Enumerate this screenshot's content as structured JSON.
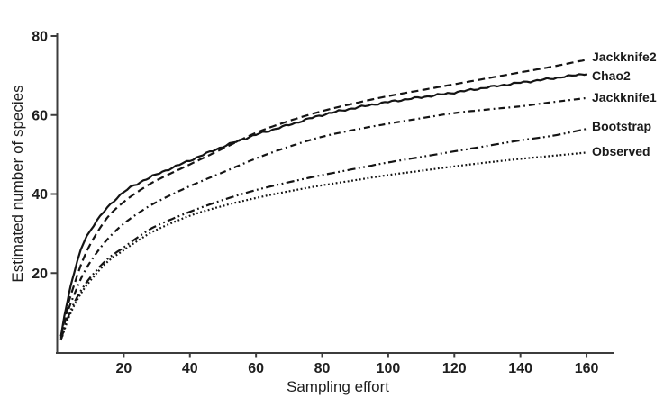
{
  "figure": {
    "background": "#ffffff",
    "axis_color": "#3c3c3c",
    "line_color": "#141414",
    "text_color": "#1e1e1e"
  },
  "chart_data": {
    "type": "line",
    "title": "",
    "xlabel": "Sampling effort",
    "ylabel": "Estimated number of species",
    "xlim": [
      0,
      168
    ],
    "ylim": [
      0,
      80
    ],
    "x_ticks": [
      20,
      40,
      60,
      80,
      100,
      120,
      140,
      160
    ],
    "y_ticks": [
      20,
      40,
      60,
      80
    ],
    "grid": false,
    "legend_position": "right-of-curve-ends",
    "x": [
      1,
      2,
      3,
      4,
      5,
      7,
      10,
      15,
      20,
      25,
      30,
      40,
      50,
      60,
      70,
      80,
      90,
      100,
      110,
      120,
      130,
      140,
      150,
      160
    ],
    "series": [
      {
        "name": "Jackknife2",
        "line_style": "dashed",
        "values": [
          4,
          8,
          11.5,
          14.5,
          17,
          22,
          27.5,
          34,
          38,
          41,
          43.5,
          47.5,
          51.5,
          55.5,
          58.5,
          61,
          63,
          64.8,
          66.3,
          67.8,
          69.3,
          70.8,
          72.3,
          74
        ]
      },
      {
        "name": "Chao2",
        "line_style": "solid",
        "values": [
          4,
          9,
          13,
          17,
          20,
          26,
          31,
          36.5,
          40.5,
          43,
          45,
          48.5,
          52,
          55,
          57.5,
          60,
          61.8,
          63.3,
          64.5,
          65.7,
          67,
          68.2,
          69.3,
          70.5
        ]
      },
      {
        "name": "Jackknife1",
        "line_style": "dash-dot",
        "values": [
          3.5,
          7,
          10,
          12.5,
          14.5,
          18.5,
          23,
          28.5,
          32.5,
          35.5,
          38,
          42,
          45.5,
          49,
          52,
          54.5,
          56.3,
          57.8,
          59.2,
          60.5,
          61.4,
          62.2,
          63.3,
          64.3
        ]
      },
      {
        "name": "Bootstrap",
        "line_style": "dash-dot-dot",
        "values": [
          3,
          6,
          8.5,
          10.5,
          12.5,
          15.5,
          19,
          23.5,
          26.5,
          29.5,
          32,
          35.5,
          38.5,
          41,
          43,
          44.8,
          46.4,
          48,
          49.4,
          50.8,
          52.2,
          53.6,
          54.8,
          56.5
        ]
      },
      {
        "name": "Observed",
        "line_style": "dotted",
        "values": [
          3,
          5.5,
          8,
          10,
          11.8,
          14.8,
          18.2,
          22.8,
          25.8,
          28.6,
          31,
          34.5,
          37,
          39,
          40.7,
          42.2,
          43.5,
          44.8,
          45.9,
          47,
          48,
          48.9,
          49.7,
          50.5
        ]
      }
    ]
  }
}
